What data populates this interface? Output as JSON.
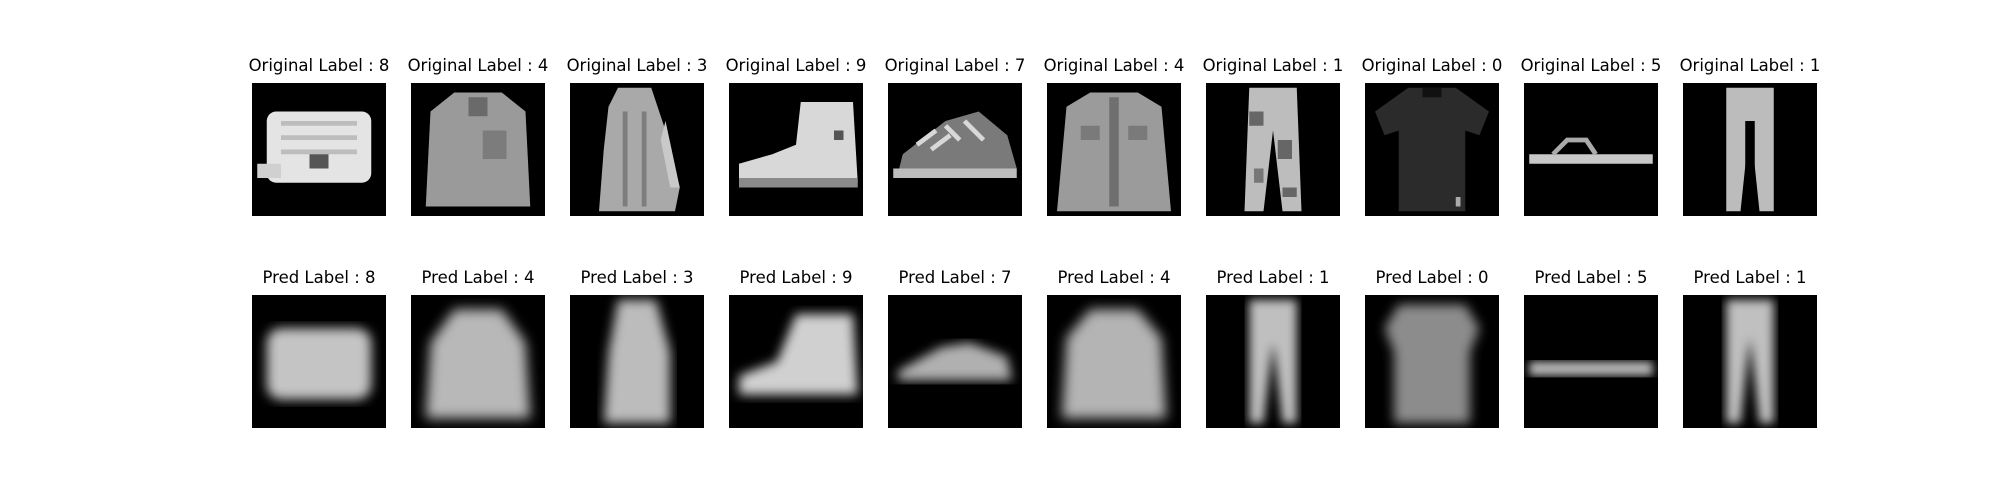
{
  "rows": {
    "original": [
      {
        "label": "Original Label : 8",
        "item": "bag"
      },
      {
        "label": "Original Label : 4",
        "item": "coat"
      },
      {
        "label": "Original Label : 3",
        "item": "dress"
      },
      {
        "label": "Original Label : 9",
        "item": "ankle-boot"
      },
      {
        "label": "Original Label : 7",
        "item": "sneaker"
      },
      {
        "label": "Original Label : 4",
        "item": "coat"
      },
      {
        "label": "Original Label : 1",
        "item": "trouser"
      },
      {
        "label": "Original Label : 0",
        "item": "t-shirt"
      },
      {
        "label": "Original Label : 5",
        "item": "sandal"
      },
      {
        "label": "Original Label : 1",
        "item": "trouser"
      }
    ],
    "pred": [
      {
        "label": "Pred Label : 8",
        "item": "bag"
      },
      {
        "label": "Pred Label : 4",
        "item": "coat"
      },
      {
        "label": "Pred Label : 3",
        "item": "dress"
      },
      {
        "label": "Pred Label : 9",
        "item": "ankle-boot"
      },
      {
        "label": "Pred Label : 7",
        "item": "sneaker"
      },
      {
        "label": "Pred Label : 4",
        "item": "coat"
      },
      {
        "label": "Pred Label : 1",
        "item": "trouser"
      },
      {
        "label": "Pred Label : 0",
        "item": "t-shirt"
      },
      {
        "label": "Pred Label : 5",
        "item": "sandal"
      },
      {
        "label": "Pred Label : 1",
        "item": "trouser"
      }
    ]
  }
}
